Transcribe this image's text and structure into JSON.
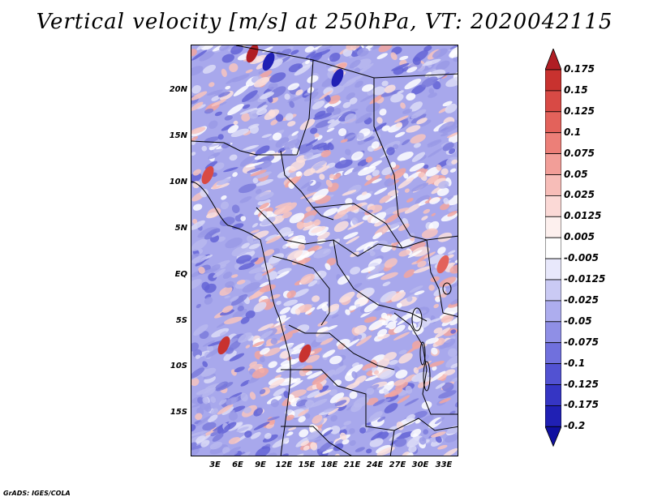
{
  "title": "Vertical velocity [m/s] at 250hPa, VT: 2020042115",
  "footer": "GrADS: IGES/COLA",
  "map": {
    "region": "Central Africa",
    "variable": "Vertical velocity",
    "units": "m/s",
    "level": "250hPa",
    "valid_time": "2020042115",
    "lat_labels": [
      "20N",
      "15N",
      "10N",
      "5N",
      "EQ",
      "5S",
      "10S",
      "15S"
    ],
    "lon_labels": [
      "3E",
      "6E",
      "9E",
      "12E",
      "15E",
      "18E",
      "21E",
      "24E",
      "27E",
      "30E",
      "33E"
    ]
  },
  "colorbar": {
    "labels": [
      "0.175",
      "0.15",
      "0.125",
      "0.1",
      "0.075",
      "0.05",
      "0.025",
      "0.0125",
      "0.005",
      "-0.005",
      "-0.0125",
      "-0.025",
      "-0.05",
      "-0.075",
      "-0.1",
      "-0.125",
      "-0.175",
      "-0.2"
    ],
    "colors": [
      "#b01e24",
      "#c8322f",
      "#d84a45",
      "#e3625b",
      "#ec7f78",
      "#f29e98",
      "#f7bdb8",
      "#fbd9d6",
      "#fdf0ee",
      "#ffffff",
      "#e8e8fb",
      "#cacaf4",
      "#adadee",
      "#8f8fe6",
      "#7070dd",
      "#5252d2",
      "#3535c4",
      "#2020b4",
      "#1010a0"
    ]
  }
}
